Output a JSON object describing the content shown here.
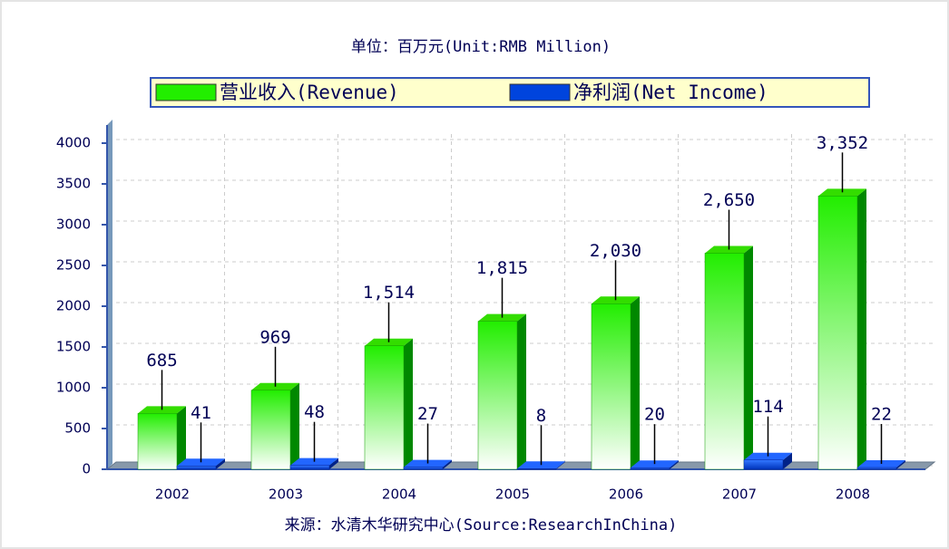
{
  "chart_data": {
    "type": "bar3d",
    "title": "单位：百万元(Unit:RMB Million)",
    "source": "来源：水清木华研究中心(Source:ResearchInChina)",
    "categories": [
      "2002",
      "2003",
      "2004",
      "2005",
      "2006",
      "2007",
      "2008"
    ],
    "series": [
      {
        "name": "营业收入(Revenue)",
        "color": "#22ee00",
        "values": [
          685,
          969,
          1514,
          1815,
          2030,
          2650,
          3352
        ],
        "value_labels": [
          "685",
          "969",
          "1,514",
          "1,815",
          "2,030",
          "2,650",
          "3,352"
        ]
      },
      {
        "name": "净利润(Net Income)",
        "color": "#0044dd",
        "values": [
          41,
          48,
          27,
          8,
          20,
          114,
          22
        ]
      }
    ],
    "ylim": [
      0,
      4000
    ],
    "yticks": [
      0,
      500,
      1000,
      1500,
      2000,
      2500,
      3000,
      3500,
      4000
    ],
    "grid": true,
    "legend": "top"
  }
}
